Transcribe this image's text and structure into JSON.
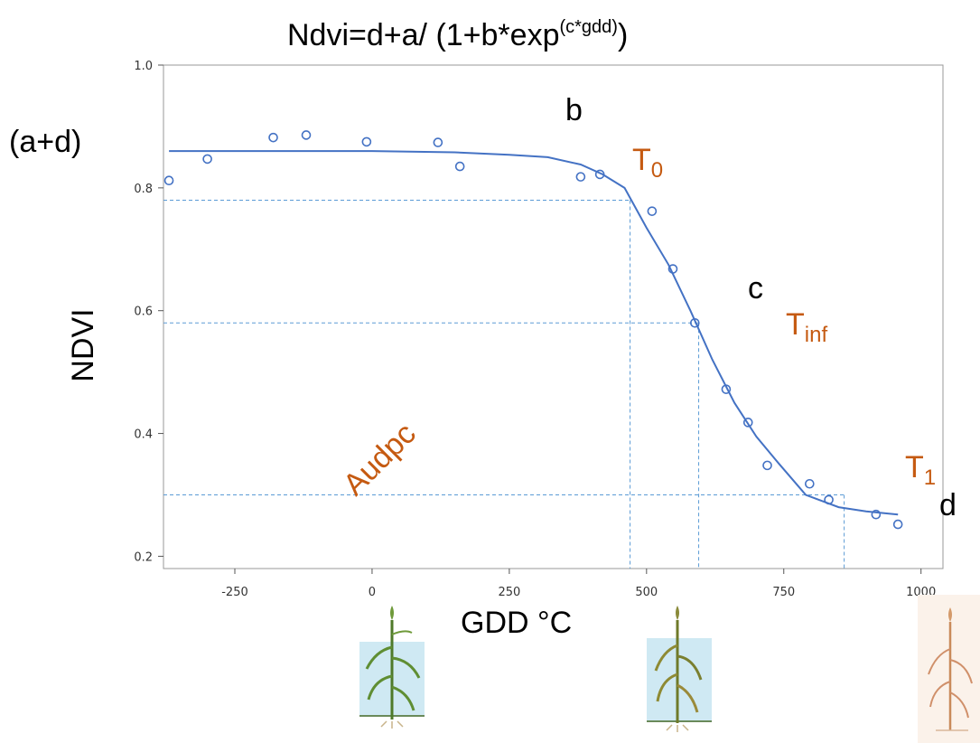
{
  "chart_data": {
    "type": "scatter",
    "title": {
      "main": "Ndvi=d+a/ (1+b*exp",
      "superscript": "(c*gdd)",
      "close": ")"
    },
    "xlabel": "GDD °C",
    "ylabel": "NDVI",
    "xlim": [
      -380,
      1040
    ],
    "ylim": [
      0.18,
      1.0
    ],
    "x_ticks": [
      "-250",
      "0",
      "250",
      "500",
      "750",
      "1000"
    ],
    "y_ticks": [
      "0.2",
      "0.4",
      "0.6",
      "0.8",
      "1.0"
    ],
    "x_tick_values": [
      -250,
      0,
      250,
      500,
      750,
      1000
    ],
    "y_tick_values": [
      0.2,
      0.4,
      0.6,
      0.8,
      1.0
    ],
    "points": [
      {
        "x": -370,
        "y": 0.812
      },
      {
        "x": -300,
        "y": 0.847
      },
      {
        "x": -180,
        "y": 0.882
      },
      {
        "x": -120,
        "y": 0.886
      },
      {
        "x": -10,
        "y": 0.875
      },
      {
        "x": 120,
        "y": 0.874
      },
      {
        "x": 160,
        "y": 0.835
      },
      {
        "x": 380,
        "y": 0.818
      },
      {
        "x": 415,
        "y": 0.822
      },
      {
        "x": 510,
        "y": 0.762
      },
      {
        "x": 548,
        "y": 0.668
      },
      {
        "x": 588,
        "y": 0.58
      },
      {
        "x": 645,
        "y": 0.472
      },
      {
        "x": 685,
        "y": 0.418
      },
      {
        "x": 720,
        "y": 0.348
      },
      {
        "x": 797,
        "y": 0.318
      },
      {
        "x": 832,
        "y": 0.292
      },
      {
        "x": 918,
        "y": 0.268
      },
      {
        "x": 958,
        "y": 0.252
      }
    ],
    "fit_curve": [
      {
        "x": -370,
        "y": 0.86
      },
      {
        "x": 0,
        "y": 0.86
      },
      {
        "x": 150,
        "y": 0.858
      },
      {
        "x": 250,
        "y": 0.854
      },
      {
        "x": 320,
        "y": 0.85
      },
      {
        "x": 380,
        "y": 0.838
      },
      {
        "x": 420,
        "y": 0.822
      },
      {
        "x": 460,
        "y": 0.8
      },
      {
        "x": 500,
        "y": 0.735
      },
      {
        "x": 540,
        "y": 0.675
      },
      {
        "x": 580,
        "y": 0.6
      },
      {
        "x": 620,
        "y": 0.52
      },
      {
        "x": 660,
        "y": 0.45
      },
      {
        "x": 700,
        "y": 0.395
      },
      {
        "x": 740,
        "y": 0.352
      },
      {
        "x": 790,
        "y": 0.3
      },
      {
        "x": 850,
        "y": 0.28
      },
      {
        "x": 900,
        "y": 0.273
      },
      {
        "x": 958,
        "y": 0.268
      }
    ],
    "reference_lines": [
      {
        "y": 0.78,
        "x": 470
      },
      {
        "y": 0.58,
        "x": 595
      },
      {
        "y": 0.3,
        "x": 860
      }
    ],
    "annotations": [
      {
        "text": "(a+d)",
        "color": "#000000"
      },
      {
        "text": "b",
        "color": "#000000"
      },
      {
        "text": "T",
        "sub": "0",
        "color": "#c55a11"
      },
      {
        "text": "c",
        "color": "#000000"
      },
      {
        "text": "T",
        "sub": "inf",
        "color": "#c55a11"
      },
      {
        "text": "Audpc",
        "color": "#c55a11"
      },
      {
        "text": "T",
        "sub": "1",
        "color": "#c55a11"
      },
      {
        "text": "d",
        "color": "#000000"
      }
    ],
    "colors": {
      "curve": "#4472c4",
      "points": "#4472c4",
      "reference": "#5b9bd5",
      "annotation_orange": "#c55a11"
    },
    "grid": false,
    "legend": "none"
  }
}
